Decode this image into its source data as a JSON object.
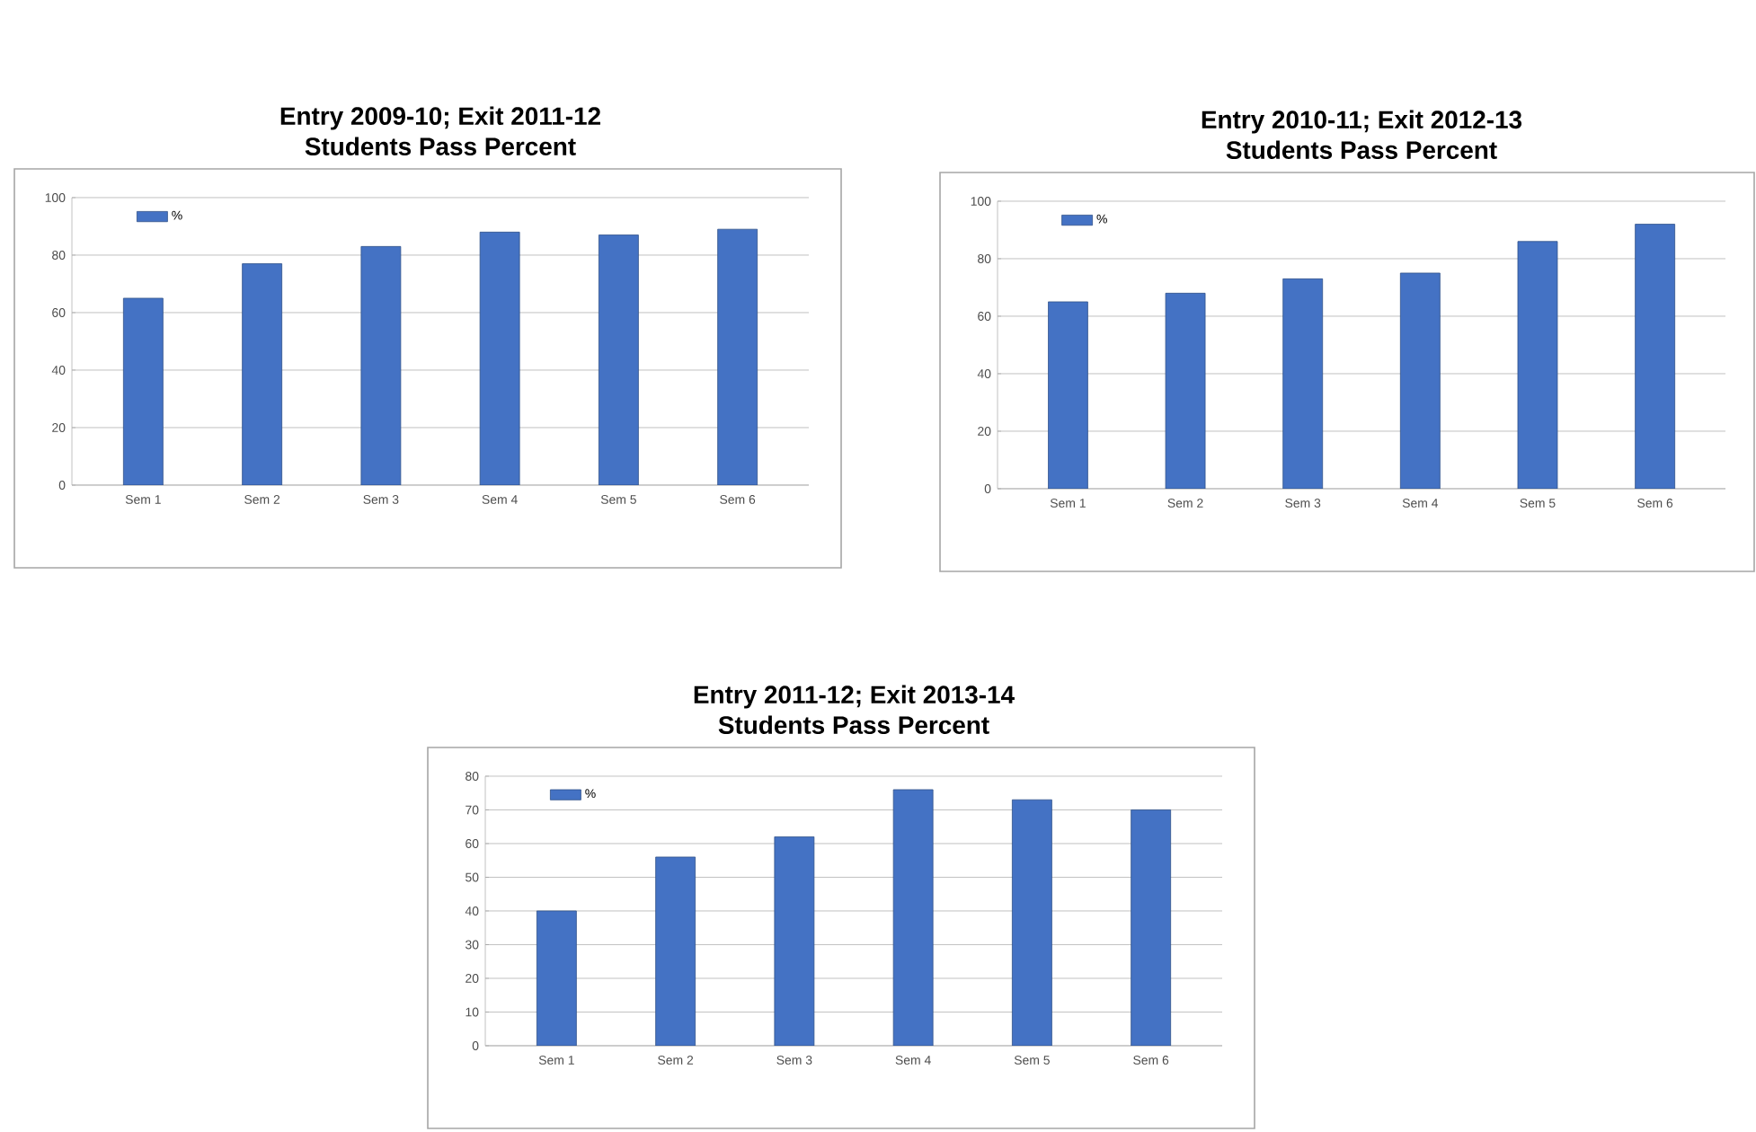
{
  "chart_data": [
    {
      "type": "bar",
      "title": "Entry 2009-10;  Exit 2011-12",
      "subtitle": "Students Pass Percent",
      "categories": [
        "Sem 1",
        "Sem 2",
        "Sem 3",
        "Sem 4",
        "Sem 5",
        "Sem 6"
      ],
      "series": [
        {
          "name": "%",
          "color": "#4472c4",
          "values": [
            65,
            77,
            83,
            88,
            87,
            89
          ]
        }
      ],
      "ylim": [
        0,
        100
      ],
      "yticks": [
        0,
        20,
        40,
        60,
        80,
        100
      ],
      "grid": "y",
      "legend": "top left"
    },
    {
      "type": "bar",
      "title": "Entry 2010-11;  Exit 2012-13",
      "subtitle": "Students Pass Percent",
      "categories": [
        "Sem 1",
        "Sem 2",
        "Sem 3",
        "Sem 4",
        "Sem 5",
        "Sem 6"
      ],
      "series": [
        {
          "name": "%",
          "color": "#4472c4",
          "values": [
            65,
            68,
            73,
            75,
            86,
            92
          ]
        }
      ],
      "ylim": [
        0,
        100
      ],
      "yticks": [
        0,
        20,
        40,
        60,
        80,
        100
      ],
      "grid": "y",
      "legend": "top left"
    },
    {
      "type": "bar",
      "title": "Entry 2011-12;  Exit 2013-14",
      "subtitle": "Students Pass Percent",
      "categories": [
        "Sem 1",
        "Sem 2",
        "Sem 3",
        "Sem 4",
        "Sem 5",
        "Sem 6"
      ],
      "series": [
        {
          "name": "%",
          "color": "#4472c4",
          "values": [
            40,
            56,
            62,
            76,
            73,
            70
          ]
        }
      ],
      "ylim": [
        0,
        80
      ],
      "yticks": [
        0,
        10,
        20,
        30,
        40,
        50,
        60,
        70,
        80
      ],
      "grid": "y",
      "legend": "top left"
    }
  ]
}
